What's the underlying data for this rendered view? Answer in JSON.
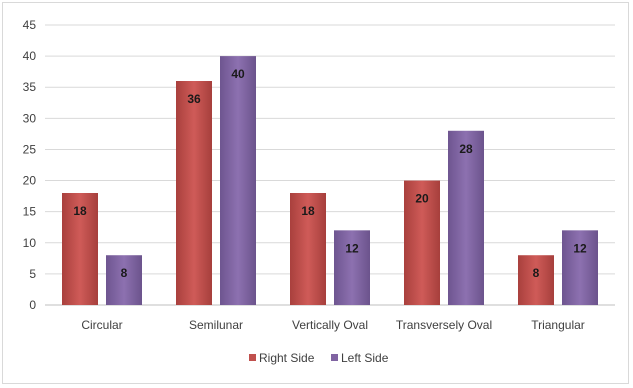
{
  "chart_data": {
    "type": "bar",
    "categories": [
      "Circular",
      "Semilunar",
      "Vertically Oval",
      "Transversely Oval",
      "Triangular"
    ],
    "series": [
      {
        "name": "Right Side",
        "values": [
          18,
          36,
          18,
          20,
          8
        ],
        "color": "#c0504d"
      },
      {
        "name": "Left Side",
        "values": [
          8,
          40,
          12,
          28,
          12
        ],
        "color": "#8064a2"
      }
    ],
    "yticks": [
      "0",
      "5",
      "10",
      "15",
      "20",
      "25",
      "30",
      "35",
      "40",
      "45"
    ],
    "ylim": [
      0,
      45
    ],
    "grid": true,
    "legend_position": "bottom"
  }
}
